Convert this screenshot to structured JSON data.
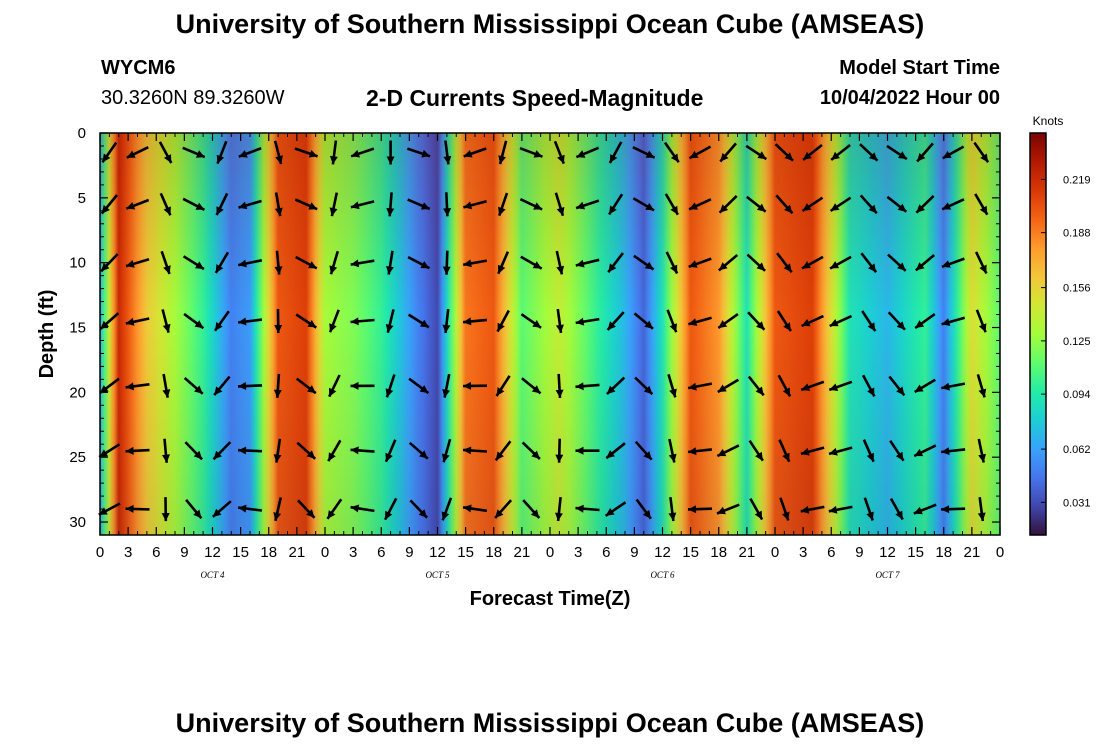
{
  "header": {
    "title": "University of Southern Mississippi Ocean Cube (AMSEAS)",
    "station_id": "WYCM6",
    "coordinates": "30.3260N  89.3260W",
    "plot_title": "2-D Currents Speed-Magnitude",
    "model_start_label": "Model Start Time",
    "model_start_value": "10/04/2022 Hour 00"
  },
  "footer": {
    "title": "University of Southern Mississippi Ocean Cube (AMSEAS)"
  },
  "chart_data": {
    "type": "heatmap",
    "title": "2-D Currents Speed-Magnitude",
    "xlabel": "Forecast Time(Z)",
    "ylabel": "Depth (ft)",
    "x_tick_labels": [
      "0",
      "3",
      "6",
      "9",
      "12",
      "15",
      "18",
      "21",
      "0",
      "3",
      "6",
      "9",
      "12",
      "15",
      "18",
      "21",
      "0",
      "3",
      "6",
      "9",
      "12",
      "15",
      "18",
      "21",
      "0",
      "3",
      "6",
      "9",
      "12",
      "15",
      "18",
      "21",
      "0"
    ],
    "x_day_labels": [
      {
        "label": "OCT 4",
        "hour": 12
      },
      {
        "label": "OCT 5",
        "hour": 36
      },
      {
        "label": "OCT 6",
        "hour": 60
      },
      {
        "label": "OCT 7",
        "hour": 84
      }
    ],
    "xlim_hours": [
      0,
      96
    ],
    "y_ticks": [
      0,
      5,
      10,
      15,
      20,
      25,
      30
    ],
    "ylim_ft": [
      0,
      31
    ],
    "y_inverted": true,
    "colorbar": {
      "label": "Knots",
      "ticks": [
        0.031,
        0.062,
        0.094,
        0.125,
        0.156,
        0.188,
        0.219
      ],
      "range": [
        0.012,
        0.246
      ],
      "colors": [
        "#30123b",
        "#4145ab",
        "#4675ed",
        "#39a2fc",
        "#1bcfd4",
        "#24eca6",
        "#61fc6c",
        "#a4fc3b",
        "#d1e834",
        "#f3c63a",
        "#fe9b2d",
        "#f36315",
        "#d93806",
        "#b11901",
        "#7a0402"
      ]
    },
    "speed_profile_knots": [
      {
        "hour": 0,
        "speed": 0.07
      },
      {
        "hour": 2,
        "speed": 0.22
      },
      {
        "hour": 5,
        "speed": 0.16
      },
      {
        "hour": 8,
        "speed": 0.13
      },
      {
        "hour": 11,
        "speed": 0.1
      },
      {
        "hour": 14,
        "speed": 0.05
      },
      {
        "hour": 16,
        "speed": 0.06
      },
      {
        "hour": 19,
        "speed": 0.2
      },
      {
        "hour": 22,
        "speed": 0.21
      },
      {
        "hour": 24,
        "speed": 0.13
      },
      {
        "hour": 27,
        "speed": 0.12
      },
      {
        "hour": 30,
        "speed": 0.1
      },
      {
        "hour": 34,
        "speed": 0.05
      },
      {
        "hour": 36,
        "speed": 0.03
      },
      {
        "hour": 39,
        "speed": 0.19
      },
      {
        "hour": 42,
        "speed": 0.2
      },
      {
        "hour": 45,
        "speed": 0.11
      },
      {
        "hour": 49,
        "speed": 0.14
      },
      {
        "hour": 53,
        "speed": 0.1
      },
      {
        "hour": 56,
        "speed": 0.07
      },
      {
        "hour": 58,
        "speed": 0.04
      },
      {
        "hour": 60,
        "speed": 0.09
      },
      {
        "hour": 63,
        "speed": 0.2
      },
      {
        "hour": 66,
        "speed": 0.18
      },
      {
        "hour": 69,
        "speed": 0.09
      },
      {
        "hour": 72,
        "speed": 0.2
      },
      {
        "hour": 76,
        "speed": 0.21
      },
      {
        "hour": 80,
        "speed": 0.09
      },
      {
        "hour": 84,
        "speed": 0.07
      },
      {
        "hour": 88,
        "speed": 0.1
      },
      {
        "hour": 90,
        "speed": 0.05
      },
      {
        "hour": 93,
        "speed": 0.15
      },
      {
        "hour": 96,
        "speed": 0.11
      }
    ]
  }
}
